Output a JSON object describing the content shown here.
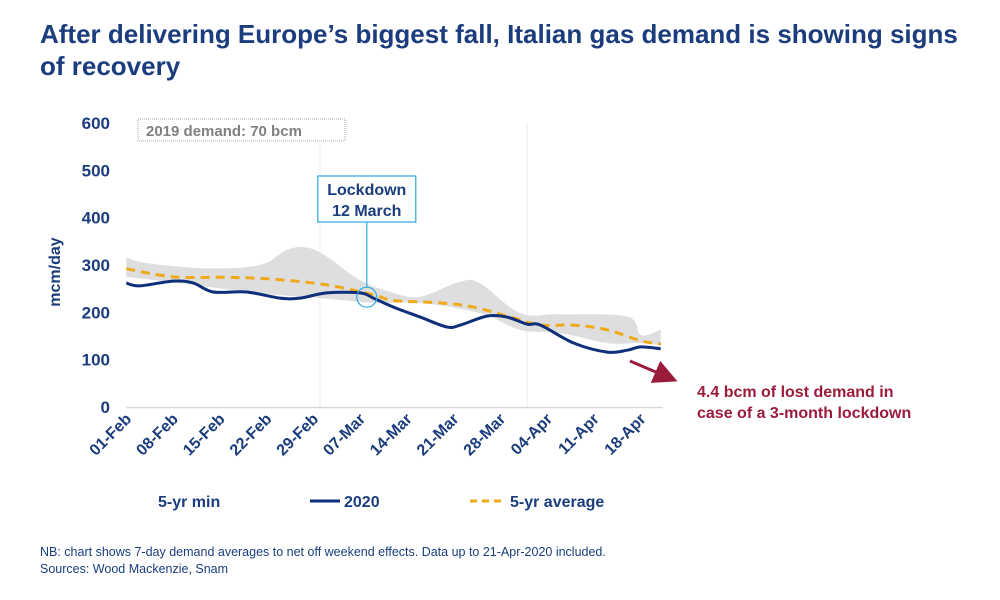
{
  "title": "After delivering Europe’s biggest fall, Italian gas demand is showing signs of recovery",
  "footnote": [
    "NB: chart shows 7-day demand averages to net off weekend effects. Data up to 21-Apr-2020 included.",
    "Sources: Wood Mackenzie, Snam"
  ],
  "chart_data": {
    "type": "line",
    "title": "After delivering Europe’s biggest fall, Italian gas demand is showing signs of recovery",
    "ylabel": "mcm/day",
    "xlabel": "",
    "ylim": [
      0,
      600
    ],
    "yticks": [
      "0",
      "100",
      "200",
      "300",
      "400",
      "500",
      "600"
    ],
    "xticks": [
      "01-Feb",
      "08-Feb",
      "15-Feb",
      "22-Feb",
      "29-Feb",
      "07-Mar",
      "14-Mar",
      "21-Mar",
      "28-Mar",
      "04-Apr",
      "11-Apr",
      "18-Apr"
    ],
    "xtick_dates": [
      "2020-02-01",
      "2020-02-08",
      "2020-02-15",
      "2020-02-22",
      "2020-02-29",
      "2020-03-07",
      "2020-03-14",
      "2020-03-21",
      "2020-03-28",
      "2020-04-04",
      "2020-04-11",
      "2020-04-18"
    ],
    "grid": "vertical month lines",
    "legend_placement": "bottom",
    "legend": [
      "5-yr min",
      "2020",
      "5-yr average"
    ],
    "colors": {
      "series_2020": "#0f2f7a",
      "average": "#f0a91b",
      "band": "#dedede",
      "annotation": "#29a8e0",
      "lost_demand": "#9b1b3a",
      "text": "#1b3d7d"
    },
    "band": {
      "upper": [
        [
          "2020-02-01",
          316
        ],
        [
          "2020-02-04",
          304
        ],
        [
          "2020-02-13",
          293
        ],
        [
          "2020-02-21",
          300
        ],
        [
          "2020-02-25",
          332
        ],
        [
          "2020-02-28",
          337
        ],
        [
          "2020-03-02",
          318
        ],
        [
          "2020-03-07",
          268
        ],
        [
          "2020-03-12",
          241
        ],
        [
          "2020-03-16",
          233
        ],
        [
          "2020-03-22",
          265
        ],
        [
          "2020-03-25",
          261
        ],
        [
          "2020-03-31",
          198
        ],
        [
          "2020-04-06",
          196
        ],
        [
          "2020-04-16",
          191
        ],
        [
          "2020-04-18",
          152
        ],
        [
          "2020-04-21",
          163
        ]
      ],
      "lower": [
        [
          "2020-02-01",
          275
        ],
        [
          "2020-02-11",
          258
        ],
        [
          "2020-02-21",
          240
        ],
        [
          "2020-03-01",
          230
        ],
        [
          "2020-03-09",
          220
        ],
        [
          "2020-03-16",
          220
        ],
        [
          "2020-03-25",
          198
        ],
        [
          "2020-03-31",
          163
        ],
        [
          "2020-04-06",
          156
        ],
        [
          "2020-04-13",
          135
        ],
        [
          "2020-04-18",
          135
        ],
        [
          "2020-04-21",
          131
        ]
      ]
    },
    "series": [
      {
        "name": "2020",
        "style": "solid",
        "points": [
          [
            "2020-02-01",
            262
          ],
          [
            "2020-02-03",
            256
          ],
          [
            "2020-02-08",
            266
          ],
          [
            "2020-02-11",
            262
          ],
          [
            "2020-02-14",
            243
          ],
          [
            "2020-02-19",
            243
          ],
          [
            "2020-02-24",
            230
          ],
          [
            "2020-02-27",
            230
          ],
          [
            "2020-03-02",
            241
          ],
          [
            "2020-03-07",
            241
          ],
          [
            "2020-03-09",
            230
          ],
          [
            "2020-03-12",
            211
          ],
          [
            "2020-03-16",
            190
          ],
          [
            "2020-03-20",
            169
          ],
          [
            "2020-03-22",
            173
          ],
          [
            "2020-03-26",
            192
          ],
          [
            "2020-03-29",
            190
          ],
          [
            "2020-04-01",
            175
          ],
          [
            "2020-04-03",
            173
          ],
          [
            "2020-04-08",
            135
          ],
          [
            "2020-04-13",
            116
          ],
          [
            "2020-04-16",
            120
          ],
          [
            "2020-04-18",
            127
          ],
          [
            "2020-04-21",
            123
          ]
        ]
      },
      {
        "name": "5-yr average",
        "style": "dashed",
        "points": [
          [
            "2020-02-01",
            292
          ],
          [
            "2020-02-08",
            275
          ],
          [
            "2020-02-16",
            274
          ],
          [
            "2020-02-23",
            270
          ],
          [
            "2020-03-02",
            258
          ],
          [
            "2020-03-09",
            237
          ],
          [
            "2020-03-12",
            225
          ],
          [
            "2020-03-19",
            220
          ],
          [
            "2020-03-24",
            211
          ],
          [
            "2020-03-30",
            188
          ],
          [
            "2020-04-03",
            173
          ],
          [
            "2020-04-08",
            173
          ],
          [
            "2020-04-13",
            163
          ],
          [
            "2020-04-18",
            140
          ],
          [
            "2020-04-21",
            133
          ]
        ]
      }
    ],
    "annotations": {
      "box_2019": "2019 demand: 70 bcm",
      "lockdown": {
        "line1": "Lockdown",
        "line2": "12 March",
        "date": "2020-03-08",
        "value": 232
      },
      "lost_demand": {
        "line1": "4.4 bcm of lost demand in",
        "line2": "case of a 3-month lockdown"
      }
    }
  }
}
